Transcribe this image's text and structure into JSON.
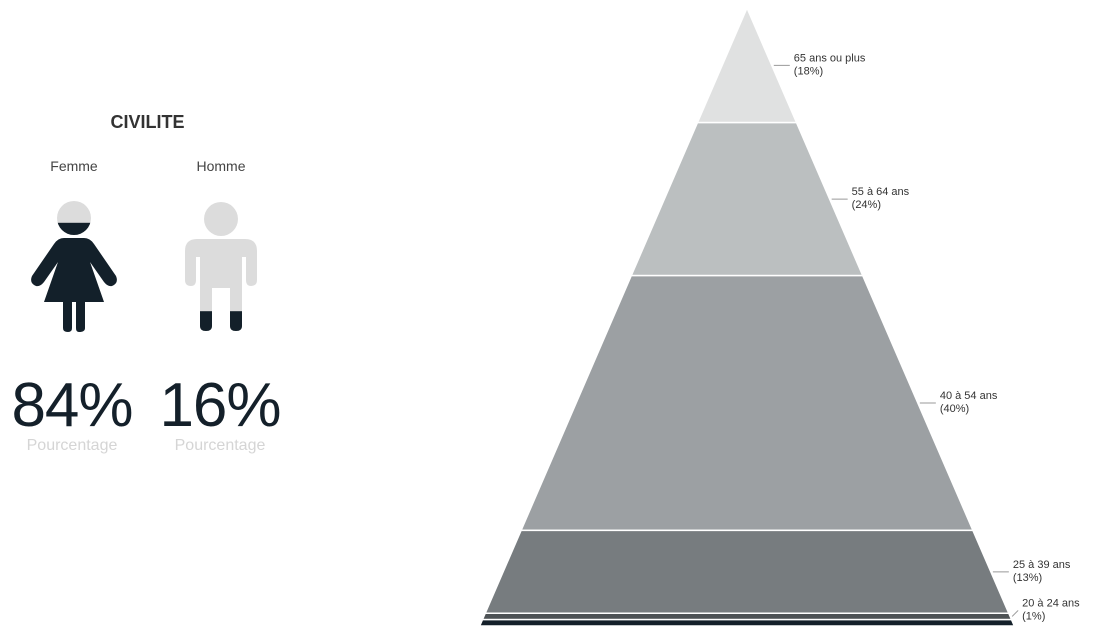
{
  "civilite": {
    "title": "CIVILITE",
    "genders": [
      {
        "label": "Femme",
        "percent_text": "84%",
        "sublabel": "Pourcentage",
        "fill_fraction": 0.84,
        "icon": "female-icon"
      },
      {
        "label": "Homme",
        "percent_text": "16%",
        "sublabel": "Pourcentage",
        "fill_fraction": 0.16,
        "icon": "male-icon"
      }
    ]
  },
  "colors": {
    "filled": "#13202a",
    "empty": "#dcdcdc"
  },
  "chart_data": {
    "type": "pyramid",
    "title": "",
    "segments": [
      {
        "label": "65 ans ou plus",
        "percent": 18,
        "percent_label": "(18%)",
        "color": "#e0e1e1"
      },
      {
        "label": "55 à 64 ans",
        "percent": 24,
        "percent_label": "(24%)",
        "color": "#bbbfc0"
      },
      {
        "label": "40 à 54 ans",
        "percent": 40,
        "percent_label": "(40%)",
        "color": "#9ca0a3"
      },
      {
        "label": "25 à 39 ans",
        "percent": 13,
        "percent_label": "(13%)",
        "color": "#777c7f"
      },
      {
        "label": "20 à 24 ans",
        "percent": 1,
        "percent_label": "(1%)",
        "color": "#4d5255"
      },
      {
        "label": "",
        "percent": 1,
        "percent_label": "",
        "color": "#14202a"
      }
    ]
  }
}
